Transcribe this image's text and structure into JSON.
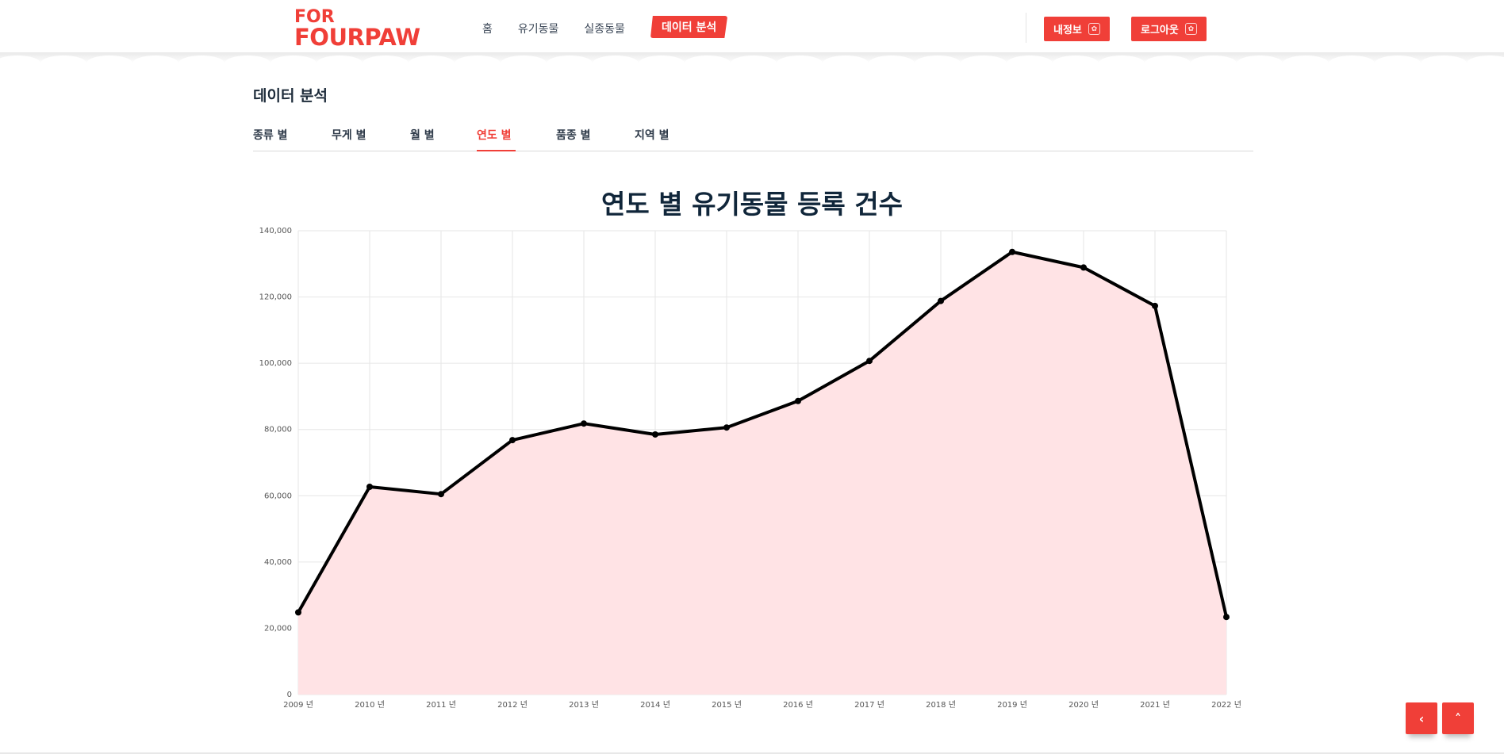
{
  "brand": {
    "line1": "FOR",
    "line2": "FOURPAW"
  },
  "nav": {
    "items": [
      {
        "label": "홈"
      },
      {
        "label": "유기동물"
      },
      {
        "label": "실종동물"
      },
      {
        "label": "데이터 분석",
        "active": true
      }
    ],
    "my_info": "내정보",
    "logout": "로그아웃"
  },
  "page": {
    "title": "데이터 분석",
    "tabs": [
      {
        "label": "종류 별"
      },
      {
        "label": "무게 별"
      },
      {
        "label": "월 별"
      },
      {
        "label": "연도 별",
        "active": true
      },
      {
        "label": "품종 별"
      },
      {
        "label": "지역 별"
      }
    ]
  },
  "colors": {
    "accent": "#f03f38",
    "fill": "#ffe3e5",
    "line": "#000000",
    "grid": "#e6e6e6"
  },
  "icons": {
    "paw": "paw-icon",
    "back": "chevron-left-icon",
    "top": "chevron-up-icon"
  },
  "chart_data": {
    "type": "area",
    "title": "연도 별 유기동물 등록 건수",
    "categories": [
      "2009 년",
      "2010 년",
      "2011 년",
      "2012 년",
      "2013 년",
      "2014 년",
      "2015 년",
      "2016 년",
      "2017 년",
      "2018 년",
      "2019 년",
      "2020 년",
      "2021 년",
      "2022 년"
    ],
    "values": [
      24800,
      62700,
      60500,
      76800,
      81800,
      78500,
      80600,
      88600,
      100700,
      118800,
      133600,
      128900,
      117300,
      23400
    ],
    "ylim": [
      0,
      140000
    ],
    "yticks": [
      0,
      20000,
      40000,
      60000,
      80000,
      100000,
      120000,
      140000
    ],
    "ytick_labels": [
      "0",
      "20,000",
      "40,000",
      "60,000",
      "80,000",
      "100,000",
      "120,000",
      "140,000"
    ],
    "grid": true,
    "xlabel": "",
    "ylabel": ""
  }
}
